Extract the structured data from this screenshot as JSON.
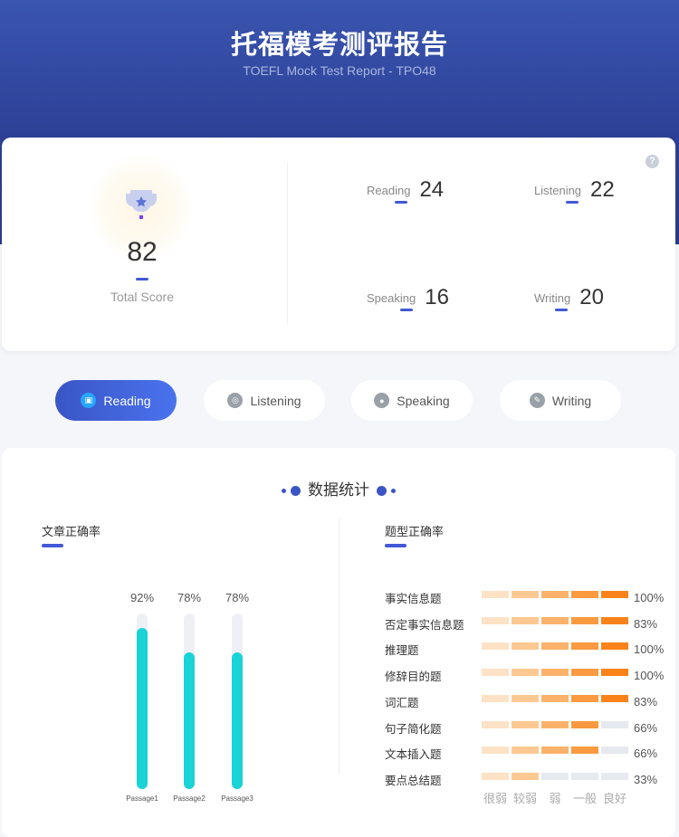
{
  "header": {
    "title": "托福模考测评报告",
    "subtitle": "TOEFL Mock Test Report - TPO48"
  },
  "score_card": {
    "total": {
      "value": "82",
      "label": "Total Score"
    },
    "sections": [
      {
        "label": "Reading",
        "value": "24"
      },
      {
        "label": "Listening",
        "value": "22"
      },
      {
        "label": "Speaking",
        "value": "16"
      },
      {
        "label": "Writing",
        "value": "20"
      }
    ],
    "help_icon": "question-circle-icon"
  },
  "tabs": [
    {
      "label": "Reading",
      "icon": "book-icon",
      "active": true
    },
    {
      "label": "Listening",
      "icon": "headphones-icon",
      "active": false
    },
    {
      "label": "Speaking",
      "icon": "microphone-icon",
      "active": false
    },
    {
      "label": "Writing",
      "icon": "pen-icon",
      "active": false
    }
  ],
  "stats": {
    "title": "数据统计",
    "passage_title": "文章正确率",
    "type_title": "题型正确率"
  },
  "chart_data": [
    {
      "type": "bar",
      "title": "文章正确率",
      "categories": [
        "Passage1",
        "Passage2",
        "Passage3"
      ],
      "values": [
        92,
        78,
        78
      ],
      "value_labels": [
        "92%",
        "78%",
        "78%"
      ],
      "ylim": [
        0,
        100
      ],
      "color": "#19d3d6"
    },
    {
      "type": "table",
      "title": "题型正确率",
      "levels": [
        "很弱",
        "较弱",
        "弱",
        "一般",
        "良好"
      ],
      "rows": [
        {
          "label": "事实信息题",
          "pct": "100%",
          "level": 5
        },
        {
          "label": "否定事实信息题",
          "pct": "83%",
          "level": 5
        },
        {
          "label": "推理题",
          "pct": "100%",
          "level": 5
        },
        {
          "label": "修辞目的题",
          "pct": "100%",
          "level": 5
        },
        {
          "label": "词汇题",
          "pct": "83%",
          "level": 5
        },
        {
          "label": "句子简化题",
          "pct": "66%",
          "level": 4
        },
        {
          "label": "文本插入题",
          "pct": "66%",
          "level": 4
        },
        {
          "label": "要点总结题",
          "pct": "33%",
          "level": 2
        }
      ],
      "colors": [
        "#fde2c6",
        "#fdc892",
        "#fcb26a",
        "#fb9a40",
        "#f9831a"
      ],
      "empty_color": "#e7e9f0"
    }
  ],
  "colors": {
    "accent": "#4159d6",
    "header": "#2c3f94"
  }
}
